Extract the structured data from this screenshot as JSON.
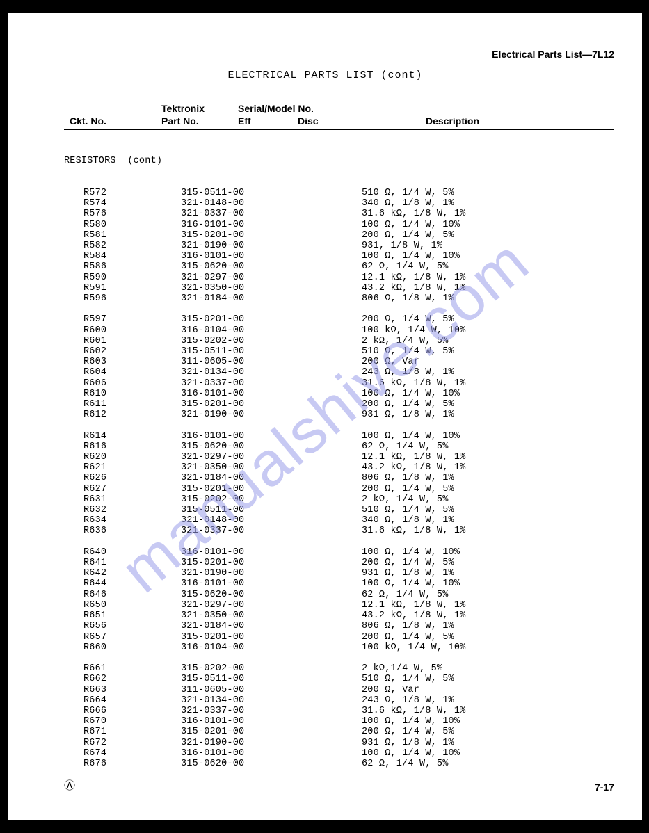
{
  "header_right": "Electrical Parts List—7L12",
  "title": "ELECTRICAL PARTS LIST  (cont)",
  "watermark": "manualshive.com",
  "col_headers": {
    "ckt": "Ckt. No.",
    "tek1": "Tektronix",
    "tek2": "Part No.",
    "ser1": "Serial/Model No.",
    "ser2": "Eff",
    "ser3": "Disc",
    "desc": "Description"
  },
  "section": "RESISTORS  (cont)",
  "groups": [
    [
      {
        "ckt": "R572",
        "pn": "315-0511-00",
        "desc": "510 Ω, 1/4 W, 5%"
      },
      {
        "ckt": "R574",
        "pn": "321-0148-00",
        "desc": "340 Ω, 1/8 W, 1%"
      },
      {
        "ckt": "R576",
        "pn": "321-0337-00",
        "desc": "31.6 kΩ, 1/8 W, 1%"
      },
      {
        "ckt": "R580",
        "pn": "316-0101-00",
        "desc": "100 Ω, 1/4 W, 10%"
      },
      {
        "ckt": "R581",
        "pn": "315-0201-00",
        "desc": "200 Ω, 1/4 W, 5%"
      },
      {
        "ckt": "R582",
        "pn": "321-0190-00",
        "desc": "931, 1/8 W, 1%"
      },
      {
        "ckt": "R584",
        "pn": "316-0101-00",
        "desc": "100 Ω, 1/4 W, 10%"
      },
      {
        "ckt": "R586",
        "pn": "315-0620-00",
        "desc": "62 Ω, 1/4 W, 5%"
      },
      {
        "ckt": "R590",
        "pn": "321-0297-00",
        "desc": "12.1 kΩ, 1/8 W, 1%"
      },
      {
        "ckt": "R591",
        "pn": "321-0350-00",
        "desc": "43.2 kΩ, 1/8 W, 1%"
      },
      {
        "ckt": "R596",
        "pn": "321-0184-00",
        "desc": "806 Ω, 1/8 W, 1%"
      }
    ],
    [
      {
        "ckt": "R597",
        "pn": "315-0201-00",
        "desc": "200 Ω, 1/4 W, 5%"
      },
      {
        "ckt": "R600",
        "pn": "316-0104-00",
        "desc": "100 kΩ, 1/4 W, 10%"
      },
      {
        "ckt": "R601",
        "pn": "315-0202-00",
        "desc": "2 kΩ, 1/4 W, 5%"
      },
      {
        "ckt": "R602",
        "pn": "315-0511-00",
        "desc": "510 Ω, 1/4 W, 5%"
      },
      {
        "ckt": "R603",
        "pn": "311-0605-00",
        "desc": "200 Ω, Var"
      },
      {
        "ckt": "R604",
        "pn": "321-0134-00",
        "desc": "243 Ω, 1/8 W, 1%"
      },
      {
        "ckt": "R606",
        "pn": "321-0337-00",
        "desc": "31.6 kΩ, 1/8 W, 1%"
      },
      {
        "ckt": "R610",
        "pn": "316-0101-00",
        "desc": "100 Ω, 1/4 W, 10%"
      },
      {
        "ckt": "R611",
        "pn": "315-0201-00",
        "desc": "200 Ω, 1/4 W, 5%"
      },
      {
        "ckt": "R612",
        "pn": "321-0190-00",
        "desc": "931 Ω, 1/8 W, 1%"
      }
    ],
    [
      {
        "ckt": "R614",
        "pn": "316-0101-00",
        "desc": "100 Ω, 1/4 W, 10%"
      },
      {
        "ckt": "R616",
        "pn": "315-0620-00",
        "desc": "62 Ω, 1/4 W, 5%"
      },
      {
        "ckt": "R620",
        "pn": "321-0297-00",
        "desc": "12.1 kΩ, 1/8 W, 1%"
      },
      {
        "ckt": "R621",
        "pn": "321-0350-00",
        "desc": "43.2 kΩ, 1/8 W, 1%"
      },
      {
        "ckt": "R626",
        "pn": "321-0184-00",
        "desc": "806 Ω, 1/8 W, 1%"
      },
      {
        "ckt": "R627",
        "pn": "315-0201-00",
        "desc": "200 Ω, 1/4 W, 5%"
      },
      {
        "ckt": "R631",
        "pn": "315-0202-00",
        "desc": "2 kΩ, 1/4 W, 5%"
      },
      {
        "ckt": "R632",
        "pn": "315-0511-00",
        "desc": "510 Ω, 1/4 W, 5%"
      },
      {
        "ckt": "R634",
        "pn": "321-0148-00",
        "desc": "340 Ω, 1/8 W, 1%"
      },
      {
        "ckt": "R636",
        "pn": "321-0337-00",
        "desc": "31.6 kΩ, 1/8 W, 1%"
      }
    ],
    [
      {
        "ckt": "R640",
        "pn": "316-0101-00",
        "desc": "100 Ω, 1/4 W, 10%"
      },
      {
        "ckt": "R641",
        "pn": "315-0201-00",
        "desc": "200 Ω, 1/4 W, 5%"
      },
      {
        "ckt": "R642",
        "pn": "321-0190-00",
        "desc": "931 Ω, 1/8 W, 1%"
      },
      {
        "ckt": "R644",
        "pn": "316-0101-00",
        "desc": "100 Ω, 1/4 W, 10%"
      },
      {
        "ckt": "R646",
        "pn": "315-0620-00",
        "desc": "62 Ω, 1/4 W, 5%"
      },
      {
        "ckt": "R650",
        "pn": "321-0297-00",
        "desc": "12.1 kΩ, 1/8 W, 1%"
      },
      {
        "ckt": "R651",
        "pn": "321-0350-00",
        "desc": "43.2 kΩ, 1/8 W, 1%"
      },
      {
        "ckt": "R656",
        "pn": "321-0184-00",
        "desc": "806 Ω, 1/8 W, 1%"
      },
      {
        "ckt": "R657",
        "pn": "315-0201-00",
        "desc": "200 Ω, 1/4 W, 5%"
      },
      {
        "ckt": "R660",
        "pn": "316-0104-00",
        "desc": "100 kΩ, 1/4 W, 10%"
      }
    ],
    [
      {
        "ckt": "R661",
        "pn": "315-0202-00",
        "desc": "2 kΩ,1/4 W, 5%"
      },
      {
        "ckt": "R662",
        "pn": "315-0511-00",
        "desc": "510 Ω, 1/4 W, 5%"
      },
      {
        "ckt": "R663",
        "pn": "311-0605-00",
        "desc": "200 Ω, Var"
      },
      {
        "ckt": "R664",
        "pn": "321-0134-00",
        "desc": "243 Ω, 1/8 W, 1%"
      },
      {
        "ckt": "R666",
        "pn": "321-0337-00",
        "desc": "31.6 kΩ, 1/8 W, 1%"
      },
      {
        "ckt": "R670",
        "pn": "316-0101-00",
        "desc": "100 Ω, 1/4 W, 10%"
      },
      {
        "ckt": "R671",
        "pn": "315-0201-00",
        "desc": "200 Ω, 1/4 W, 5%"
      },
      {
        "ckt": "R672",
        "pn": "321-0190-00",
        "desc": "931 Ω, 1/8 W, 1%"
      },
      {
        "ckt": "R674",
        "pn": "316-0101-00",
        "desc": "100 Ω, 1/4 W, 10%"
      },
      {
        "ckt": "R676",
        "pn": "315-0620-00",
        "desc": "62 Ω, 1/4 W, 5%"
      }
    ]
  ],
  "footer_left": "Ⓐ",
  "footer_right": "7-17"
}
